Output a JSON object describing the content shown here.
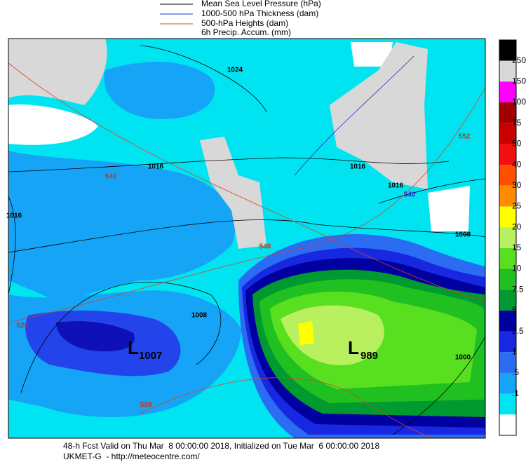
{
  "legend": {
    "items": [
      "Mean Sea Level Pressure (hPa)",
      "1000-500 hPa Thickness (dam)",
      "500-hPa Heights (dam)",
      "6h Precip. Accum. (mm)"
    ]
  },
  "colorbar": {
    "labels": [
      "250",
      "150",
      "100",
      "75",
      "50",
      "40",
      "30",
      "25",
      "20",
      "15",
      "10",
      "7.5",
      "5",
      "2.5",
      "1",
      ".5",
      ".1"
    ]
  },
  "map": {
    "contour_labels": [
      "1024",
      "1016",
      "1016",
      "1016",
      "1016",
      "1008",
      "1008",
      "1000",
      "540",
      "540",
      "540",
      "552",
      "528",
      "528"
    ],
    "lows": [
      {
        "letter": "L",
        "value": "1007"
      },
      {
        "letter": "L",
        "value": "989"
      }
    ]
  },
  "footer": {
    "line1": "48-h Fcst Valid on Thu Mar  8 00:00:00 2018, Initialized on Tue Mar  6 00:00:00 2018",
    "line2": "UKMET-G  - http://meteocentre.com/"
  }
}
